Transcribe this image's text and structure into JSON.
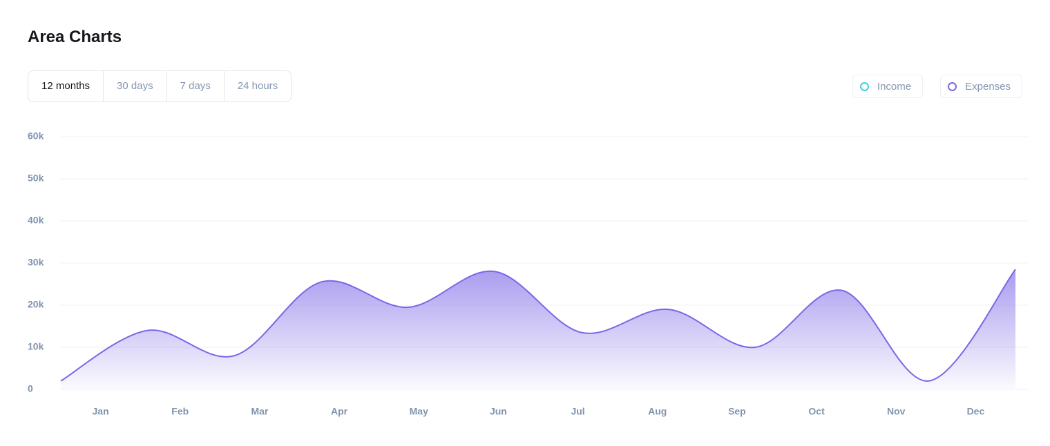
{
  "header": {
    "title": "Area Charts"
  },
  "tabs": [
    {
      "label": "12 months",
      "active": true
    },
    {
      "label": "30 days"
    },
    {
      "label": "7 days"
    },
    {
      "label": "24 hours"
    }
  ],
  "chart_data": {
    "type": "area",
    "categories": [
      "Jan",
      "Feb",
      "Mar",
      "Apr",
      "May",
      "Jun",
      "Jul",
      "Aug",
      "Sep",
      "Oct",
      "Nov",
      "Dec"
    ],
    "legend": [
      {
        "name": "Income",
        "color": "#3cd0e8"
      },
      {
        "name": "Expenses",
        "color": "#7b66e6"
      }
    ],
    "series": [
      {
        "name": "Expenses",
        "color": "#7b66e6",
        "values": [
          2000,
          14000,
          8000,
          25500,
          19500,
          28000,
          13500,
          19000,
          10000,
          23500,
          2000,
          28500
        ]
      }
    ],
    "ylim": [
      0,
      60000
    ],
    "yticks": [
      0,
      {
        "value": 10000,
        "label": "10k"
      },
      {
        "value": 20000,
        "label": "20k"
      },
      {
        "value": 30000,
        "label": "30k"
      },
      {
        "value": 40000,
        "label": "40k"
      },
      {
        "value": 50000,
        "label": "50k"
      },
      {
        "value": 60000,
        "label": "60k"
      }
    ],
    "grid": true
  }
}
